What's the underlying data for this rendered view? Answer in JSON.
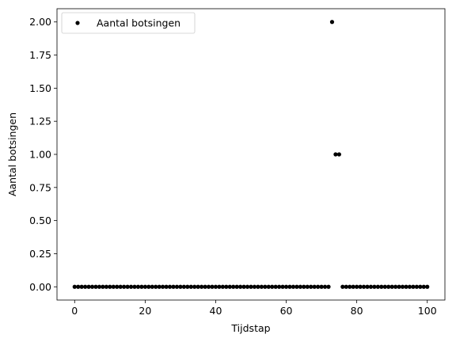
{
  "chart_data": {
    "type": "scatter",
    "xlabel": "Tijdstap",
    "ylabel": "Aantal botsingen",
    "xlim": [
      -5,
      105
    ],
    "ylim": [
      -0.1,
      2.1
    ],
    "xticks": [
      0,
      20,
      40,
      60,
      80,
      100
    ],
    "yticks": [
      0.0,
      0.25,
      0.5,
      0.75,
      1.0,
      1.25,
      1.5,
      1.75,
      2.0
    ],
    "xtick_labels": [
      "0",
      "20",
      "40",
      "60",
      "80",
      "100"
    ],
    "ytick_labels": [
      "0.00",
      "0.25",
      "0.50",
      "0.75",
      "1.00",
      "1.25",
      "1.50",
      "1.75",
      "2.00"
    ],
    "grid": false,
    "legend_position": "upper-left",
    "series": [
      {
        "name": "Aantal botsingen",
        "color": "#000000",
        "marker": "dot",
        "x": [
          0,
          1,
          2,
          3,
          4,
          5,
          6,
          7,
          8,
          9,
          10,
          11,
          12,
          13,
          14,
          15,
          16,
          17,
          18,
          19,
          20,
          21,
          22,
          23,
          24,
          25,
          26,
          27,
          28,
          29,
          30,
          31,
          32,
          33,
          34,
          35,
          36,
          37,
          38,
          39,
          40,
          41,
          42,
          43,
          44,
          45,
          46,
          47,
          48,
          49,
          50,
          51,
          52,
          53,
          54,
          55,
          56,
          57,
          58,
          59,
          60,
          61,
          62,
          63,
          64,
          65,
          66,
          67,
          68,
          69,
          70,
          71,
          72,
          73,
          74,
          75,
          76,
          77,
          78,
          79,
          80,
          81,
          82,
          83,
          84,
          85,
          86,
          87,
          88,
          89,
          90,
          91,
          92,
          93,
          94,
          95,
          96,
          97,
          98,
          99,
          100
        ],
        "values": [
          0,
          0,
          0,
          0,
          0,
          0,
          0,
          0,
          0,
          0,
          0,
          0,
          0,
          0,
          0,
          0,
          0,
          0,
          0,
          0,
          0,
          0,
          0,
          0,
          0,
          0,
          0,
          0,
          0,
          0,
          0,
          0,
          0,
          0,
          0,
          0,
          0,
          0,
          0,
          0,
          0,
          0,
          0,
          0,
          0,
          0,
          0,
          0,
          0,
          0,
          0,
          0,
          0,
          0,
          0,
          0,
          0,
          0,
          0,
          0,
          0,
          0,
          0,
          0,
          0,
          0,
          0,
          0,
          0,
          0,
          0,
          0,
          0,
          2,
          1,
          1,
          0,
          0,
          0,
          0,
          0,
          0,
          0,
          0,
          0,
          0,
          0,
          0,
          0,
          0,
          0,
          0,
          0,
          0,
          0,
          0,
          0,
          0,
          0,
          0,
          0
        ]
      }
    ]
  }
}
